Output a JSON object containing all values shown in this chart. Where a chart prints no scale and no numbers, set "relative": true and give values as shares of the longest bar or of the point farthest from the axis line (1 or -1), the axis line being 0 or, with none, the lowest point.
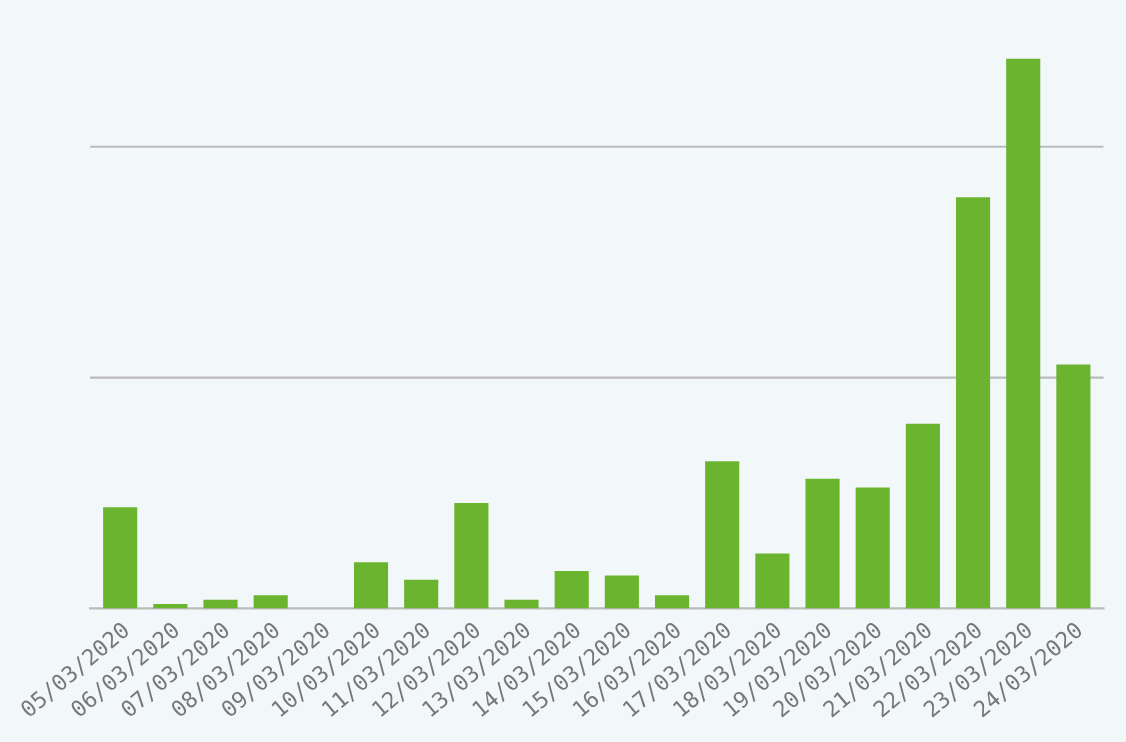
{
  "chart_data": {
    "type": "bar",
    "relative": true,
    "color": "#6ab42f",
    "ref_lines": [
      {
        "axis": "y",
        "value": 0.42,
        "color": "#bbbbbb"
      },
      {
        "axis": "y",
        "value": 0.84,
        "color": "#bbbbbb"
      }
    ],
    "categories": [
      "05/03/2020",
      "06/03/2020",
      "07/03/2020",
      "08/03/2020",
      "09/03/2020",
      "10/03/2020",
      "11/03/2020",
      "12/03/2020",
      "13/03/2020",
      "14/03/2020",
      "15/03/2020",
      "16/03/2020",
      "17/03/2020",
      "18/03/2020",
      "19/03/2020",
      "20/03/2020",
      "21/03/2020",
      "22/03/2020",
      "23/03/2020",
      "24/03/2020"
    ],
    "values": [
      0.184,
      0.008,
      0.016,
      0.024,
      0,
      0.084,
      0.052,
      0.192,
      0.016,
      0.068,
      0.06,
      0.024,
      0.268,
      0.1,
      0.236,
      0.22,
      0.336,
      0.748,
      1.0,
      0.444
    ]
  }
}
